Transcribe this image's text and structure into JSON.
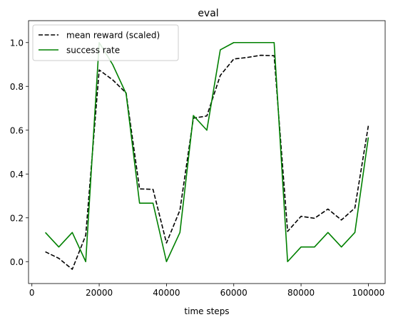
{
  "chart_data": {
    "type": "line",
    "title": "eval",
    "xlabel": "time steps",
    "ylabel": "",
    "xlim": [
      -1000,
      105000
    ],
    "ylim": [
      -0.1,
      1.1
    ],
    "xticks": [
      0,
      20000,
      40000,
      60000,
      80000,
      100000
    ],
    "yticks": [
      0.0,
      0.2,
      0.4,
      0.6,
      0.8,
      1.0
    ],
    "xtick_labels": [
      "0",
      "20000",
      "40000",
      "60000",
      "80000",
      "100000"
    ],
    "ytick_labels": [
      "0.0",
      "0.2",
      "0.4",
      "0.6",
      "0.8",
      "1.0"
    ],
    "grid": false,
    "legend_position": "top-left",
    "x": [
      4000,
      8000,
      12000,
      16000,
      20000,
      24000,
      28000,
      32000,
      36000,
      40000,
      44000,
      48000,
      52000,
      56000,
      60000,
      64000,
      68000,
      72000,
      76000,
      80000,
      84000,
      88000,
      92000,
      96000,
      100000
    ],
    "series": [
      {
        "name": "mean reward (scaled)",
        "color": "#000000",
        "dash": "dashed",
        "values": [
          0.045,
          0.015,
          -0.035,
          0.12,
          0.875,
          0.83,
          0.77,
          0.332,
          0.33,
          0.085,
          0.235,
          0.655,
          0.665,
          0.85,
          0.925,
          0.932,
          0.942,
          0.94,
          0.138,
          0.207,
          0.198,
          0.24,
          0.19,
          0.245,
          0.62
        ]
      },
      {
        "name": "success rate",
        "color": "#008000",
        "dash": "solid",
        "values": [
          0.133,
          0.067,
          0.133,
          0.0,
          1.0,
          0.9,
          0.767,
          0.267,
          0.267,
          0.0,
          0.133,
          0.667,
          0.6,
          0.967,
          1.0,
          1.0,
          1.0,
          1.0,
          0.0,
          0.067,
          0.067,
          0.133,
          0.067,
          0.133,
          0.567
        ]
      }
    ]
  }
}
